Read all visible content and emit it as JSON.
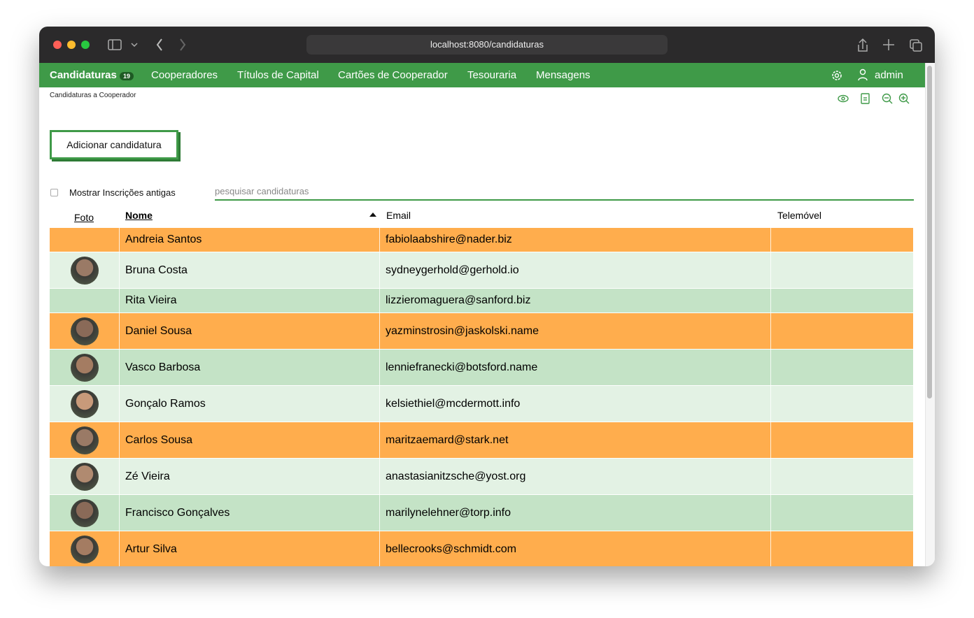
{
  "browser": {
    "url": "localhost:8080/candidaturas"
  },
  "nav": {
    "items": [
      "Candidaturas",
      "Cooperadores",
      "Títulos de Capital",
      "Cartões de Cooperador",
      "Tesouraria",
      "Mensagens"
    ],
    "badge": "19",
    "user": "admin"
  },
  "breadcrumb": "Candidaturas a Cooperador",
  "add_button": "Adicionar candidatura",
  "filter_label": "Mostrar Inscrições antigas",
  "search_placeholder": "pesquisar candidaturas",
  "table": {
    "columns": [
      "Foto",
      "Nome",
      "Email",
      "Telemóvel"
    ],
    "rows": [
      {
        "name": "Andreia Santos",
        "email": "fabiolaabshire@nader.biz",
        "photo": false,
        "color": "#ffad4d"
      },
      {
        "name": "Bruna Costa",
        "email": "sydneygerhold@gerhold.io",
        "photo": true,
        "color": "#e3f2e4"
      },
      {
        "name": "Rita Vieira",
        "email": "lizzieromaguera@sanford.biz",
        "photo": false,
        "color": "#c4e3c6"
      },
      {
        "name": "Daniel Sousa",
        "email": "yazminstrosin@jaskolski.name",
        "photo": true,
        "color": "#ffad4d"
      },
      {
        "name": "Vasco Barbosa",
        "email": "lenniefranecki@botsford.name",
        "photo": true,
        "color": "#c4e3c6"
      },
      {
        "name": "Gonçalo Ramos",
        "email": "kelsiethiel@mcdermott.info",
        "photo": true,
        "color": "#e3f2e4"
      },
      {
        "name": "Carlos Sousa",
        "email": "maritzaemard@stark.net",
        "photo": true,
        "color": "#ffad4d"
      },
      {
        "name": "Zé Vieira",
        "email": "anastasianitzsche@yost.org",
        "photo": true,
        "color": "#e3f2e4"
      },
      {
        "name": "Francisco Gonçalves",
        "email": "marilynelehner@torp.info",
        "photo": true,
        "color": "#c4e3c6"
      },
      {
        "name": "Artur Silva",
        "email": "bellecrooks@schmidt.com",
        "photo": true,
        "color": "#ffad4d"
      }
    ]
  }
}
